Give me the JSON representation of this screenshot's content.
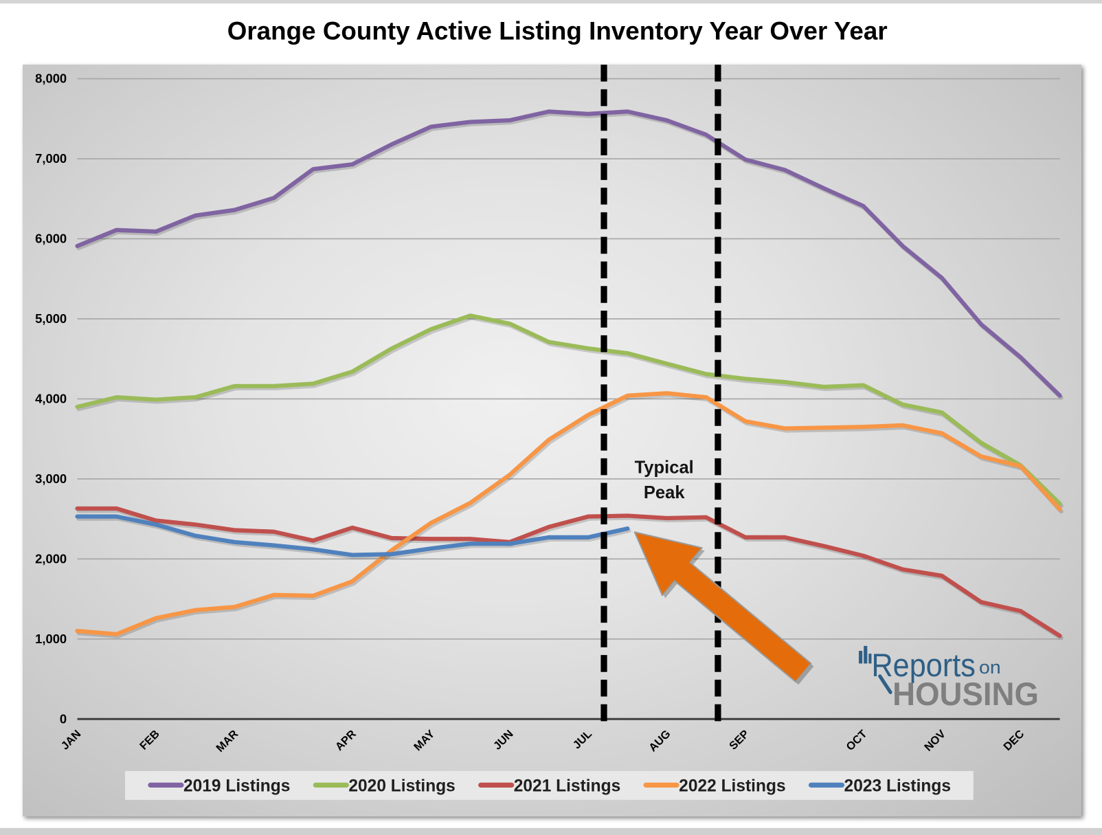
{
  "chart_data": {
    "type": "line",
    "title": "Orange County Active Listing Inventory Year Over Year",
    "xlabel": "",
    "ylabel": "",
    "ylim": [
      0,
      8000
    ],
    "y_ticks": [
      0,
      1000,
      2000,
      3000,
      4000,
      5000,
      6000,
      7000,
      8000
    ],
    "y_tick_labels": [
      "0",
      "1,000",
      "2,000",
      "3,000",
      "4,000",
      "5,000",
      "6,000",
      "7,000",
      "8,000"
    ],
    "x_ticks": [
      {
        "label": "JAN",
        "index": 0
      },
      {
        "label": "FEB",
        "index": 2
      },
      {
        "label": "MAR",
        "index": 4
      },
      {
        "label": "APR",
        "index": 7
      },
      {
        "label": "MAY",
        "index": 9
      },
      {
        "label": "JUN",
        "index": 11
      },
      {
        "label": "JUL",
        "index": 13
      },
      {
        "label": "AUG",
        "index": 15
      },
      {
        "label": "SEP",
        "index": 17
      },
      {
        "label": "OCT",
        "index": 20
      },
      {
        "label": "NOV",
        "index": 22
      },
      {
        "label": "DEC",
        "index": 24
      }
    ],
    "grid": true,
    "legend_position": "bottom",
    "series": [
      {
        "name": "2019 Listings",
        "color": "#8064A2",
        "values": [
          5910,
          6110,
          6090,
          6290,
          6360,
          6510,
          6870,
          6930,
          7180,
          7400,
          7460,
          7480,
          7590,
          7560,
          7590,
          7480,
          7300,
          6990,
          6860,
          6630,
          6410,
          5910,
          5510,
          4930,
          4520,
          4040
        ]
      },
      {
        "name": "2020 Listings",
        "color": "#9BBB59",
        "values": [
          3900,
          4020,
          3990,
          4020,
          4160,
          4160,
          4190,
          4340,
          4630,
          4870,
          5040,
          4940,
          4710,
          4630,
          4570,
          4440,
          4310,
          4250,
          4210,
          4150,
          4170,
          3930,
          3830,
          3450,
          3170,
          2690
        ]
      },
      {
        "name": "2021 Listings",
        "color": "#C0504D",
        "values": [
          2630,
          2630,
          2480,
          2430,
          2360,
          2340,
          2230,
          2390,
          2260,
          2250,
          2250,
          2210,
          2400,
          2530,
          2540,
          2510,
          2520,
          2270,
          2270,
          2160,
          2040,
          1870,
          1790,
          1460,
          1350,
          1040
        ]
      },
      {
        "name": "2022 Listings",
        "color": "#F79646",
        "values": [
          1100,
          1060,
          1260,
          1360,
          1400,
          1550,
          1540,
          1720,
          2110,
          2450,
          2700,
          3050,
          3490,
          3800,
          4040,
          4070,
          4020,
          3720,
          3630,
          3640,
          3650,
          3670,
          3570,
          3280,
          3160,
          2620
        ]
      },
      {
        "name": "2023 Listings",
        "color": "#4F81BD",
        "values": [
          2530,
          2530,
          2430,
          2290,
          2210,
          2170,
          2120,
          2050,
          2060,
          2130,
          2190,
          2190,
          2270,
          2270,
          2380
        ]
      }
    ],
    "annotation": {
      "label_lines": [
        "Typical",
        "Peak"
      ],
      "peak_window_index": [
        13.4,
        16.3
      ]
    }
  },
  "logo": {
    "word1": "Reports",
    "word2": "on",
    "word3": "HOUSING"
  },
  "colors": {
    "arrow": "#E46C0A",
    "logo_blue": "#2E5F86",
    "logo_gray": "#7F7F7F"
  }
}
